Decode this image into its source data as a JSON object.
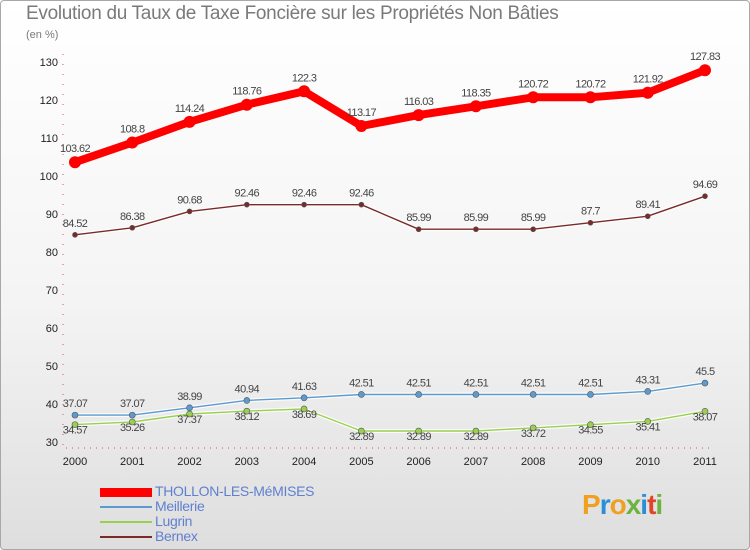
{
  "title": "Evolution du Taux de Taxe Foncière sur les Propriétés Non Bâties",
  "unit_label": "(en %)",
  "brand": {
    "text": "Proxiti",
    "letters": [
      {
        "ch": "P",
        "color": "#f0a020"
      },
      {
        "ch": "r",
        "color": "#2a8fd6"
      },
      {
        "ch": "o",
        "color": "#f0a020"
      },
      {
        "ch": "x",
        "color": "#6db33f"
      },
      {
        "ch": "i",
        "color": "#2a8fd6"
      },
      {
        "ch": "t",
        "color": "#e0452b"
      },
      {
        "ch": "i",
        "color": "#6db33f"
      }
    ]
  },
  "chart_data": {
    "type": "line",
    "title": "Evolution du Taux de Taxe Foncière sur les Propriétés Non Bâties",
    "ylabel": "(en %)",
    "xlabel": "",
    "ylim": [
      30,
      130
    ],
    "yticks": [
      30,
      40,
      50,
      60,
      70,
      80,
      90,
      100,
      110,
      120,
      130
    ],
    "grid": false,
    "legend_position": "bottom-left",
    "categories": [
      "2000",
      "2001",
      "2002",
      "2003",
      "2004",
      "2005",
      "2006",
      "2007",
      "2008",
      "2009",
      "2010",
      "2011"
    ],
    "series": [
      {
        "name": "THOLLON-LES-MéMISES",
        "color": "#ff0000",
        "values": [
          103.62,
          108.8,
          114.24,
          118.76,
          122.3,
          113.17,
          116.03,
          118.35,
          120.72,
          120.72,
          121.92,
          127.83
        ],
        "labels": [
          "103.62",
          "108.8",
          "114.24",
          "118.76",
          "122.3",
          "113.17",
          "116.03",
          "118.35",
          "120.72",
          "120.72",
          "121.92",
          "127.83"
        ]
      },
      {
        "name": "Meillerie",
        "color": "#5c9bd0",
        "values": [
          37.07,
          37.07,
          38.99,
          40.94,
          41.63,
          42.51,
          42.51,
          42.51,
          42.51,
          42.51,
          43.31,
          45.5
        ],
        "labels": [
          "37.07",
          "37.07",
          "38.99",
          "40.94",
          "41.63",
          "42.51",
          "42.51",
          "42.51",
          "42.51",
          "42.51",
          "43.31",
          "45.5"
        ]
      },
      {
        "name": "Lugrin",
        "color": "#99d050",
        "values": [
          34.57,
          35.26,
          37.37,
          38.12,
          38.69,
          32.89,
          32.89,
          32.89,
          33.72,
          34.55,
          35.41,
          38.07
        ],
        "labels": [
          "34.57",
          "35.26",
          "37.37",
          "38.12",
          "38.69",
          "32.89",
          "32.89",
          "32.89",
          "33.72",
          "34.55",
          "35.41",
          "38.07"
        ]
      },
      {
        "name": "Bernex",
        "color": "#7b2a2a",
        "values": [
          84.52,
          86.38,
          90.68,
          92.46,
          92.46,
          92.46,
          85.99,
          85.99,
          85.99,
          87.7,
          89.41,
          94.69
        ],
        "labels": [
          "84.52",
          "86.38",
          "90.68",
          "92.46",
          "92.46",
          "92.46",
          "85.99",
          "85.99",
          "85.99",
          "87.7",
          "89.41",
          "94.69"
        ]
      }
    ]
  }
}
